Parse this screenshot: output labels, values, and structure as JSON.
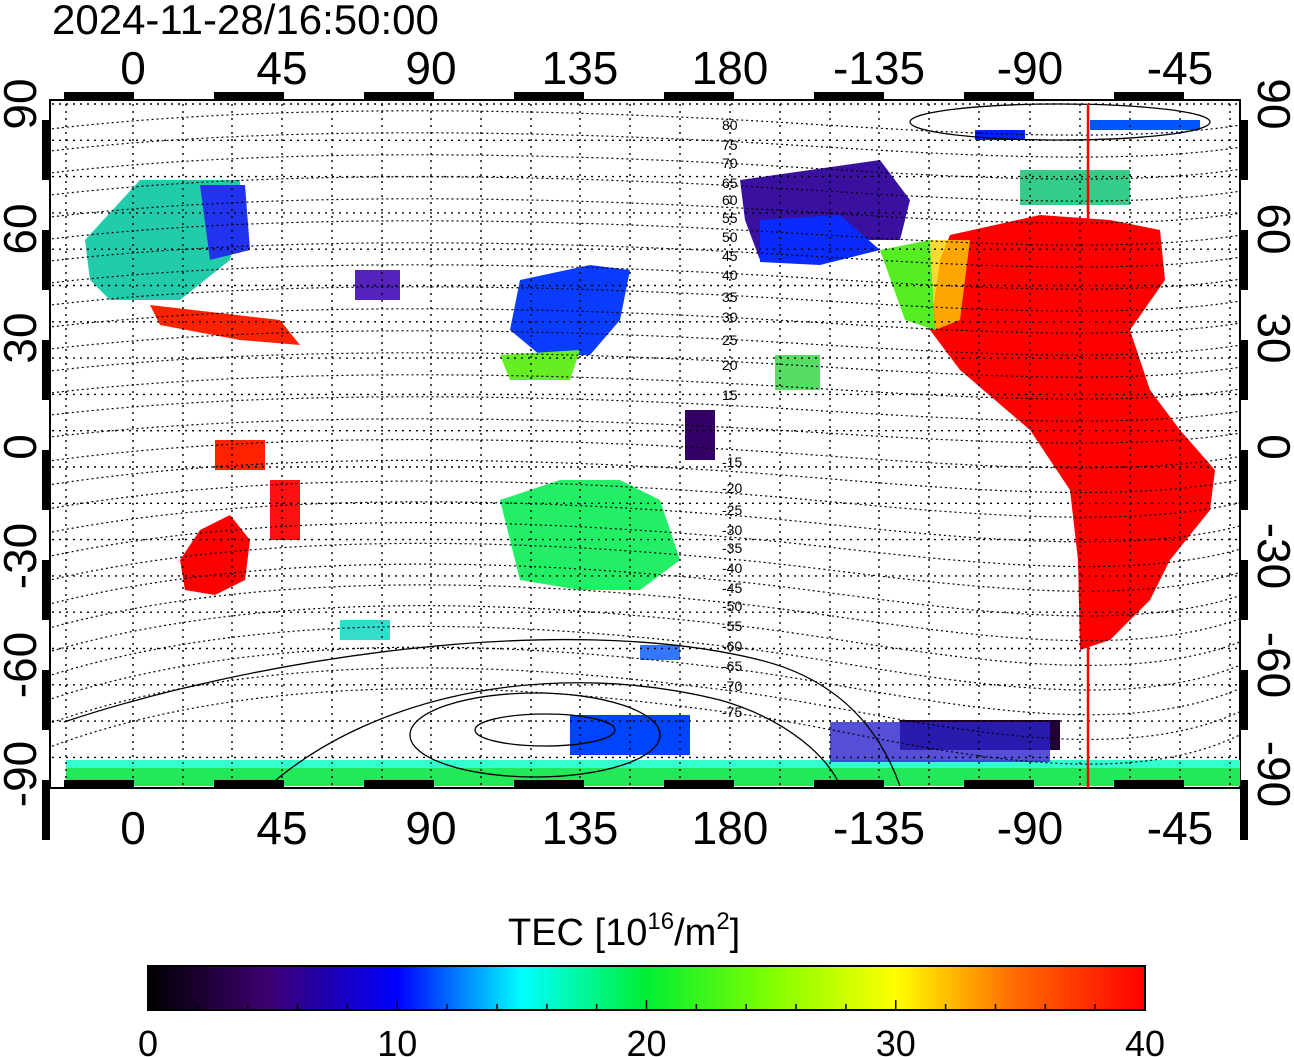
{
  "title": "2024-11-28/16:50:00",
  "lon_tick_labels": [
    "0",
    "45",
    "90",
    "135",
    "180",
    "-135",
    "-90",
    "-45"
  ],
  "lat_tick_labels": [
    "90",
    "60",
    "30",
    "0",
    "-30",
    "-60",
    "-90"
  ],
  "mlat_labels": [
    "80",
    "75",
    "70",
    "65",
    "60",
    "55",
    "50",
    "45",
    "40",
    "35",
    "30",
    "25",
    "20",
    "15",
    "-15",
    "-20",
    "-25",
    "-30",
    "-35",
    "-40",
    "-45",
    "-50",
    "-55",
    "-60",
    "-65",
    "-70",
    "-75"
  ],
  "colorbar": {
    "title_main": "TEC  [10",
    "title_sup": "16",
    "title_mid": "/m",
    "title_sup2": "2",
    "title_end": "]",
    "tick_labels": [
      "0",
      "10",
      "20",
      "30",
      "40"
    ],
    "min": 0,
    "max": 40
  },
  "colors": {
    "terminator": "#ff0000",
    "high_tec": "#ff0000",
    "grid": "#000000"
  },
  "legend_gradient": [
    "#000000",
    "#4b0082",
    "#0000ff",
    "#00ffff",
    "#00ff00",
    "#ffff00",
    "#ff8000",
    "#ff0000"
  ]
}
